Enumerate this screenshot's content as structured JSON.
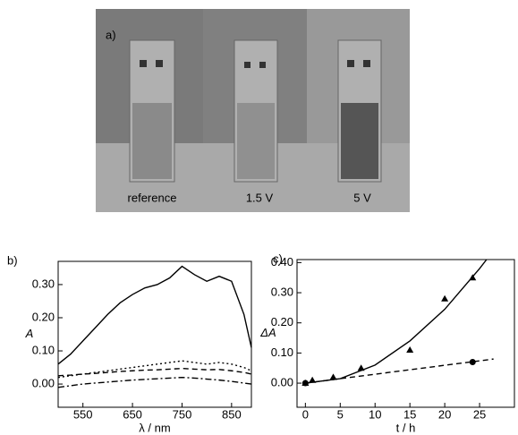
{
  "photo": {
    "label": "a)",
    "captions": [
      "reference",
      "1.5 V",
      "5 V"
    ]
  },
  "chart_data": [
    {
      "type": "line",
      "panel_label": "b)",
      "x_label": "λ / nm",
      "y_label": "A",
      "x": [
        500,
        525,
        550,
        575,
        600,
        625,
        650,
        675,
        700,
        725,
        750,
        775,
        800,
        825,
        850,
        875,
        890
      ],
      "series": [
        {
          "color": "#000",
          "dash": "solid",
          "values": [
            0.06,
            0.09,
            0.13,
            0.17,
            0.21,
            0.245,
            0.27,
            0.29,
            0.3,
            0.32,
            0.355,
            0.33,
            0.31,
            0.325,
            0.31,
            0.21,
            0.11
          ]
        },
        {
          "color": "#000",
          "dash": "dotted",
          "values": [
            0.02,
            0.025,
            0.03,
            0.035,
            0.04,
            0.045,
            0.05,
            0.055,
            0.06,
            0.065,
            0.07,
            0.065,
            0.06,
            0.065,
            0.06,
            0.05,
            0.04
          ]
        },
        {
          "color": "#000",
          "dash": "dashed",
          "values": [
            0.025,
            0.027,
            0.03,
            0.032,
            0.035,
            0.038,
            0.04,
            0.042,
            0.043,
            0.045,
            0.047,
            0.045,
            0.043,
            0.044,
            0.04,
            0.035,
            0.03
          ]
        },
        {
          "color": "#000",
          "dash": "dashdot",
          "values": [
            -0.01,
            -0.005,
            0,
            0.003,
            0.006,
            0.009,
            0.012,
            0.014,
            0.016,
            0.018,
            0.02,
            0.018,
            0.015,
            0.012,
            0.008,
            0.003,
            0
          ]
        }
      ],
      "xlim": [
        500,
        890
      ],
      "ylim": [
        -0.07,
        0.37
      ],
      "xticks": [
        550,
        650,
        750,
        850
      ],
      "yticks": [
        {
          "value": 0,
          "label": "0.00"
        },
        {
          "value": 0.1,
          "label": "0.10"
        },
        {
          "value": 0.2,
          "label": "0.20"
        },
        {
          "value": 0.3,
          "label": "0.30"
        }
      ]
    },
    {
      "type": "scatter",
      "panel_label": "c)",
      "x_label": "t / h",
      "y_label": "ΔA",
      "series": [
        {
          "marker": "triangle",
          "color": "#000",
          "x": [
            0,
            1,
            4,
            8,
            15,
            20,
            24
          ],
          "values": [
            0,
            0.01,
            0.02,
            0.05,
            0.11,
            0.28,
            0.35
          ]
        },
        {
          "marker": "circle",
          "color": "#000",
          "x": [
            0,
            24
          ],
          "values": [
            0,
            0.07
          ]
        },
        {
          "marker": "none",
          "dash": "solid",
          "color": "#000",
          "x": [
            0,
            5,
            10,
            15,
            20,
            25,
            26
          ],
          "values": [
            0,
            0.015,
            0.06,
            0.14,
            0.245,
            0.38,
            0.41
          ]
        },
        {
          "marker": "none",
          "dash": "dashed",
          "color": "#000",
          "x": [
            0,
            27
          ],
          "values": [
            0,
            0.08
          ]
        }
      ],
      "xlim": [
        -1.2,
        30
      ],
      "ylim": [
        -0.08,
        0.41
      ],
      "xticks": [
        0,
        5,
        10,
        15,
        20,
        25
      ],
      "yticks": [
        {
          "value": 0,
          "label": "0.00"
        },
        {
          "value": 0.1,
          "label": "0.10"
        },
        {
          "value": 0.2,
          "label": "0.20"
        },
        {
          "value": 0.3,
          "label": "0.30"
        },
        {
          "value": 0.4,
          "label": "0.40"
        }
      ]
    }
  ]
}
